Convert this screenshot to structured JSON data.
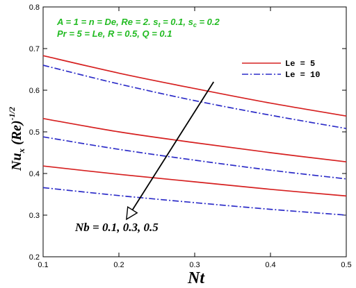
{
  "colors": {
    "param_text": "#22bb22",
    "series_red": "#d62020",
    "series_blue": "#2c2cc8"
  },
  "chart_data": {
    "type": "line",
    "xlabel": "Nt",
    "ylabel": "Nux (Re)-1/2",
    "ylabel_parts": {
      "main": "Nu",
      "sub": "x",
      "mid": " (Re)",
      "sup": "-1/2"
    },
    "xlim": [
      0.1,
      0.5
    ],
    "ylim": [
      0.2,
      0.8
    ],
    "xticks": [
      0.1,
      0.2,
      0.3,
      0.4,
      0.5
    ],
    "xtick_labels": [
      "0.1",
      "0.2",
      "0.3",
      "0.4",
      "0.5"
    ],
    "yticks": [
      0.2,
      0.3,
      0.4,
      0.5,
      0.6,
      0.7,
      0.8
    ],
    "ytick_labels": [
      "0.2",
      "0.3",
      "0.4",
      "0.5",
      "0.6",
      "0.7",
      "0.8"
    ],
    "grid": false,
    "legend_position": "top-right",
    "legend": [
      {
        "label": "Le = 5",
        "style": "solid",
        "color": "#d62020"
      },
      {
        "label": "Le = 10",
        "style": "dashdot",
        "color": "#2c2cc8"
      }
    ],
    "parameter_lines": [
      {
        "text": "A = 1 = n = De, Re = 2. s",
        "sub": "t",
        "mid": " = 0.1, s",
        "sub2": "c",
        "end": " = 0.2"
      },
      {
        "text": "Pr = 5 = Le, R = 0.5, Q = 0.1"
      }
    ],
    "annotation": {
      "text": "Nb = 0.1, 0.3, 0.5",
      "arrow_from": [
        0.325,
        0.62
      ],
      "arrow_to": [
        0.21,
        0.29
      ]
    },
    "series": [
      {
        "Le": 5,
        "Nb": 0.1,
        "style": "solid",
        "x": [
          0.1,
          0.2,
          0.3,
          0.4,
          0.5
        ],
        "y": [
          0.683,
          0.641,
          0.604,
          0.569,
          0.538
        ]
      },
      {
        "Le": 10,
        "Nb": 0.1,
        "style": "dashdot",
        "x": [
          0.1,
          0.2,
          0.3,
          0.4,
          0.5
        ],
        "y": [
          0.66,
          0.615,
          0.575,
          0.54,
          0.508
        ]
      },
      {
        "Le": 5,
        "Nb": 0.3,
        "style": "solid",
        "x": [
          0.1,
          0.2,
          0.3,
          0.4,
          0.5
        ],
        "y": [
          0.532,
          0.5,
          0.474,
          0.45,
          0.428
        ]
      },
      {
        "Le": 10,
        "Nb": 0.3,
        "style": "dashdot",
        "x": [
          0.1,
          0.2,
          0.3,
          0.4,
          0.5
        ],
        "y": [
          0.488,
          0.458,
          0.432,
          0.408,
          0.387
        ]
      },
      {
        "Le": 5,
        "Nb": 0.5,
        "style": "solid",
        "x": [
          0.1,
          0.2,
          0.3,
          0.4,
          0.5
        ],
        "y": [
          0.418,
          0.398,
          0.38,
          0.362,
          0.346
        ]
      },
      {
        "Le": 10,
        "Nb": 0.5,
        "style": "dashdot",
        "x": [
          0.1,
          0.2,
          0.3,
          0.4,
          0.5
        ],
        "y": [
          0.366,
          0.347,
          0.33,
          0.314,
          0.3
        ]
      }
    ]
  }
}
